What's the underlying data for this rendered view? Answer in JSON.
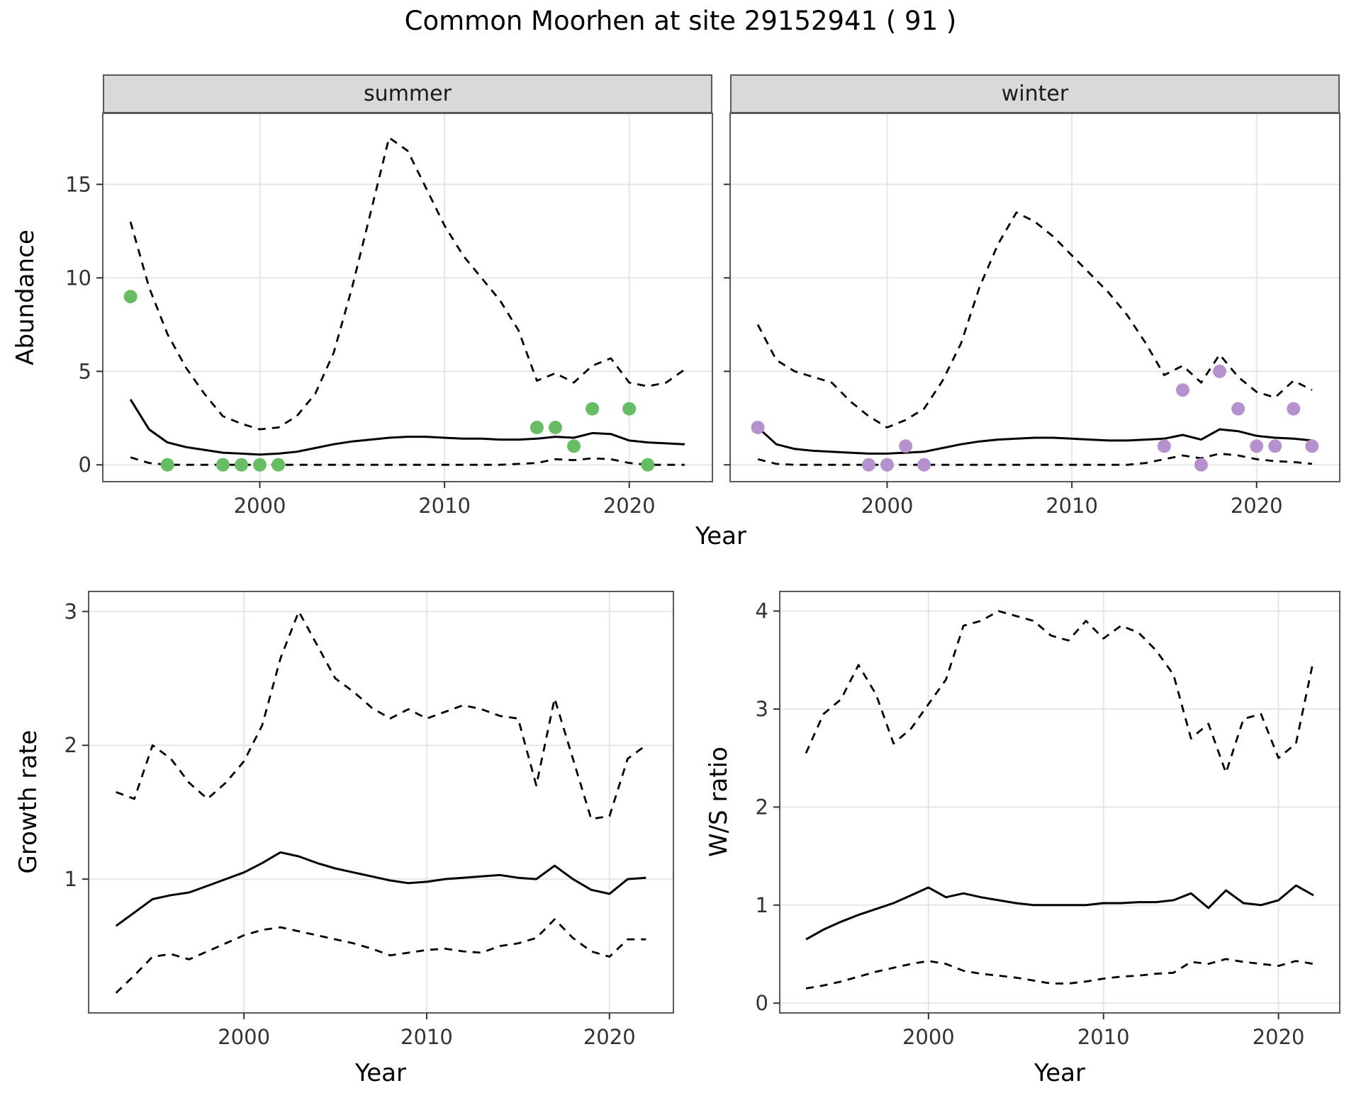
{
  "title": "Common Moorhen at site 29152941 ( 91 )",
  "colors": {
    "line": "#000000",
    "summer_points": "#66bd63",
    "winter_points": "#b592ce",
    "strip_bg": "#d9d9d9",
    "grid": "#e6e6e6",
    "panel_border": "#595959",
    "tick_text": "#333333"
  },
  "chart_data": [
    {
      "id": "abundance-summer",
      "type": "line",
      "facet": "summer",
      "xlabel": "Year",
      "ylabel": "Abundance",
      "xlim": [
        1991.5,
        2024.5
      ],
      "ylim": [
        -0.9,
        18.8
      ],
      "xticks": [
        2000,
        2010,
        2020
      ],
      "yticks": [
        0,
        5,
        10,
        15
      ],
      "grid": "major",
      "legend": "none",
      "series": [
        {
          "name": "median",
          "type": "line",
          "dash": false,
          "color": "#000000",
          "x": [
            1993,
            1994,
            1995,
            1996,
            1997,
            1998,
            1999,
            2000,
            2001,
            2002,
            2003,
            2004,
            2005,
            2006,
            2007,
            2008,
            2009,
            2010,
            2011,
            2012,
            2013,
            2014,
            2015,
            2016,
            2017,
            2018,
            2019,
            2020,
            2021,
            2022,
            2023
          ],
          "y": [
            3.5,
            1.9,
            1.2,
            0.95,
            0.8,
            0.65,
            0.6,
            0.55,
            0.6,
            0.7,
            0.9,
            1.1,
            1.25,
            1.35,
            1.45,
            1.5,
            1.5,
            1.45,
            1.4,
            1.4,
            1.35,
            1.35,
            1.4,
            1.5,
            1.45,
            1.7,
            1.65,
            1.3,
            1.2,
            1.15,
            1.1
          ]
        },
        {
          "name": "upper-ci",
          "type": "line",
          "dash": true,
          "color": "#000000",
          "x": [
            1993,
            1994,
            1995,
            1996,
            1997,
            1998,
            1999,
            2000,
            2001,
            2002,
            2003,
            2004,
            2005,
            2006,
            2007,
            2008,
            2009,
            2010,
            2011,
            2012,
            2013,
            2014,
            2015,
            2016,
            2017,
            2018,
            2019,
            2020,
            2021,
            2022,
            2023
          ],
          "y": [
            13,
            9.5,
            7,
            5.2,
            3.8,
            2.6,
            2.2,
            1.9,
            2,
            2.6,
            3.8,
            6,
            9.5,
            13.5,
            17.5,
            16.8,
            14.8,
            12.8,
            11.2,
            10,
            8.8,
            7.2,
            4.5,
            4.9,
            4.4,
            5.3,
            5.7,
            4.4,
            4.2,
            4.4,
            5.1
          ]
        },
        {
          "name": "lower-ci",
          "type": "line",
          "dash": true,
          "color": "#000000",
          "x": [
            1993,
            1994,
            1995,
            1996,
            1997,
            1998,
            1999,
            2000,
            2001,
            2002,
            2003,
            2004,
            2005,
            2006,
            2007,
            2008,
            2009,
            2010,
            2011,
            2012,
            2013,
            2014,
            2015,
            2016,
            2017,
            2018,
            2019,
            2020,
            2021,
            2022,
            2023
          ],
          "y": [
            0.4,
            0.1,
            0,
            0,
            0,
            0,
            0,
            0,
            0,
            0,
            0,
            0,
            0,
            0,
            0,
            0,
            0,
            0,
            0,
            0,
            0,
            0.05,
            0.1,
            0.3,
            0.25,
            0.35,
            0.3,
            0.1,
            0,
            0,
            0
          ]
        },
        {
          "name": "observed-counts",
          "type": "points",
          "color": "#66bd63",
          "points": [
            [
              1993,
              9
            ],
            [
              1995,
              0
            ],
            [
              1998,
              0
            ],
            [
              1999,
              0
            ],
            [
              2000,
              0
            ],
            [
              2001,
              0
            ],
            [
              2015,
              2
            ],
            [
              2016,
              2
            ],
            [
              2017,
              1
            ],
            [
              2018,
              3
            ],
            [
              2020,
              3
            ],
            [
              2021,
              0
            ]
          ]
        }
      ]
    },
    {
      "id": "abundance-winter",
      "type": "line",
      "facet": "winter",
      "xlabel": "Year",
      "ylabel": "Abundance",
      "xlim": [
        1991.5,
        2024.5
      ],
      "ylim": [
        -0.9,
        18.8
      ],
      "xticks": [
        2000,
        2010,
        2020
      ],
      "yticks": [
        0,
        5,
        10,
        15
      ],
      "grid": "major",
      "legend": "none",
      "series": [
        {
          "name": "median",
          "type": "line",
          "dash": false,
          "color": "#000000",
          "x": [
            1993,
            1994,
            1995,
            1996,
            1997,
            1998,
            1999,
            2000,
            2001,
            2002,
            2003,
            2004,
            2005,
            2006,
            2007,
            2008,
            2009,
            2010,
            2011,
            2012,
            2013,
            2014,
            2015,
            2016,
            2017,
            2018,
            2019,
            2020,
            2021,
            2022,
            2023
          ],
          "y": [
            2,
            1.1,
            0.85,
            0.75,
            0.7,
            0.65,
            0.6,
            0.6,
            0.65,
            0.7,
            0.9,
            1.1,
            1.25,
            1.35,
            1.4,
            1.45,
            1.45,
            1.4,
            1.35,
            1.3,
            1.3,
            1.35,
            1.4,
            1.6,
            1.35,
            1.9,
            1.8,
            1.55,
            1.45,
            1.4,
            1.3
          ]
        },
        {
          "name": "upper-ci",
          "type": "line",
          "dash": true,
          "color": "#000000",
          "x": [
            1993,
            1994,
            1995,
            1996,
            1997,
            1998,
            1999,
            2000,
            2001,
            2002,
            2003,
            2004,
            2005,
            2006,
            2007,
            2008,
            2009,
            2010,
            2011,
            2012,
            2013,
            2014,
            2015,
            2016,
            2017,
            2018,
            2019,
            2020,
            2021,
            2022,
            2023
          ],
          "y": [
            7.5,
            5.6,
            5,
            4.7,
            4.4,
            3.4,
            2.6,
            2,
            2.4,
            3,
            4.5,
            6.5,
            9.5,
            11.8,
            13.5,
            13,
            12.2,
            11.2,
            10.2,
            9.2,
            8,
            6.5,
            4.8,
            5.3,
            4.4,
            5.9,
            4.7,
            3.9,
            3.6,
            4.5,
            4
          ]
        },
        {
          "name": "lower-ci",
          "type": "line",
          "dash": true,
          "color": "#000000",
          "x": [
            1993,
            1994,
            1995,
            1996,
            1997,
            1998,
            1999,
            2000,
            2001,
            2002,
            2003,
            2004,
            2005,
            2006,
            2007,
            2008,
            2009,
            2010,
            2011,
            2012,
            2013,
            2014,
            2015,
            2016,
            2017,
            2018,
            2019,
            2020,
            2021,
            2022,
            2023
          ],
          "y": [
            0.3,
            0.05,
            0,
            0,
            0,
            0,
            0,
            0,
            0,
            0,
            0,
            0,
            0,
            0,
            0,
            0,
            0,
            0,
            0,
            0,
            0,
            0.1,
            0.3,
            0.5,
            0.35,
            0.6,
            0.5,
            0.3,
            0.2,
            0.15,
            0.05
          ]
        },
        {
          "name": "observed-counts",
          "type": "points",
          "color": "#b592ce",
          "points": [
            [
              1993,
              2
            ],
            [
              1999,
              0
            ],
            [
              2000,
              0
            ],
            [
              2001,
              1
            ],
            [
              2002,
              0
            ],
            [
              2015,
              1
            ],
            [
              2016,
              4
            ],
            [
              2017,
              0
            ],
            [
              2018,
              5
            ],
            [
              2019,
              3
            ],
            [
              2020,
              1
            ],
            [
              2021,
              1
            ],
            [
              2022,
              3
            ],
            [
              2023,
              1
            ]
          ]
        }
      ]
    },
    {
      "id": "growth-rate",
      "type": "line",
      "facet": null,
      "xlabel": "Year",
      "ylabel": "Growth rate",
      "xlim": [
        1991.5,
        2023.5
      ],
      "ylim": [
        0,
        3.15
      ],
      "xticks": [
        2000,
        2010,
        2020
      ],
      "yticks": [
        1,
        2,
        3
      ],
      "grid": "major",
      "legend": "none",
      "series": [
        {
          "name": "median",
          "type": "line",
          "dash": false,
          "color": "#000000",
          "x": [
            1993,
            1994,
            1995,
            1996,
            1997,
            1998,
            1999,
            2000,
            2001,
            2002,
            2003,
            2004,
            2005,
            2006,
            2007,
            2008,
            2009,
            2010,
            2011,
            2012,
            2013,
            2014,
            2015,
            2016,
            2017,
            2018,
            2019,
            2020,
            2021,
            2022
          ],
          "y": [
            0.65,
            0.75,
            0.85,
            0.88,
            0.9,
            0.95,
            1,
            1.05,
            1.12,
            1.2,
            1.17,
            1.12,
            1.08,
            1.05,
            1.02,
            0.99,
            0.97,
            0.98,
            1,
            1.01,
            1.02,
            1.03,
            1.01,
            1,
            1.1,
            1,
            0.92,
            0.89,
            1,
            1.01
          ]
        },
        {
          "name": "upper-ci",
          "type": "line",
          "dash": true,
          "color": "#000000",
          "x": [
            1993,
            1994,
            1995,
            1996,
            1997,
            1998,
            1999,
            2000,
            2001,
            2002,
            2003,
            2004,
            2005,
            2006,
            2007,
            2008,
            2009,
            2010,
            2011,
            2012,
            2013,
            2014,
            2015,
            2016,
            2017,
            2018,
            2019,
            2020,
            2021,
            2022
          ],
          "y": [
            1.65,
            1.6,
            2,
            1.9,
            1.72,
            1.6,
            1.72,
            1.88,
            2.15,
            2.65,
            3,
            2.75,
            2.5,
            2.4,
            2.28,
            2.2,
            2.27,
            2.2,
            2.25,
            2.3,
            2.27,
            2.22,
            2.2,
            1.7,
            2.35,
            1.9,
            1.45,
            1.47,
            1.9,
            2
          ]
        },
        {
          "name": "lower-ci",
          "type": "line",
          "dash": true,
          "color": "#000000",
          "x": [
            1993,
            1994,
            1995,
            1996,
            1997,
            1998,
            1999,
            2000,
            2001,
            2002,
            2003,
            2004,
            2005,
            2006,
            2007,
            2008,
            2009,
            2010,
            2011,
            2012,
            2013,
            2014,
            2015,
            2016,
            2017,
            2018,
            2019,
            2020,
            2021,
            2022
          ],
          "y": [
            0.15,
            0.28,
            0.42,
            0.44,
            0.4,
            0.46,
            0.52,
            0.58,
            0.62,
            0.64,
            0.61,
            0.58,
            0.55,
            0.52,
            0.48,
            0.43,
            0.45,
            0.47,
            0.48,
            0.46,
            0.45,
            0.5,
            0.52,
            0.56,
            0.7,
            0.56,
            0.46,
            0.42,
            0.55,
            0.55
          ]
        }
      ]
    },
    {
      "id": "ws-ratio",
      "type": "line",
      "facet": null,
      "xlabel": "Year",
      "ylabel": "W/S ratio",
      "xlim": [
        1991.5,
        2023.5
      ],
      "ylim": [
        -0.1,
        4.2
      ],
      "xticks": [
        2000,
        2010,
        2020
      ],
      "yticks": [
        0,
        1,
        2,
        3,
        4
      ],
      "grid": "major",
      "legend": "none",
      "series": [
        {
          "name": "median",
          "type": "line",
          "dash": false,
          "color": "#000000",
          "x": [
            1993,
            1994,
            1995,
            1996,
            1997,
            1998,
            1999,
            2000,
            2001,
            2002,
            2003,
            2004,
            2005,
            2006,
            2007,
            2008,
            2009,
            2010,
            2011,
            2012,
            2013,
            2014,
            2015,
            2016,
            2017,
            2018,
            2019,
            2020,
            2021,
            2022
          ],
          "y": [
            0.65,
            0.75,
            0.83,
            0.9,
            0.96,
            1.02,
            1.1,
            1.18,
            1.08,
            1.12,
            1.08,
            1.05,
            1.02,
            1,
            1,
            1,
            1,
            1.02,
            1.02,
            1.03,
            1.03,
            1.05,
            1.12,
            0.97,
            1.15,
            1.02,
            1,
            1.05,
            1.2,
            1.1
          ]
        },
        {
          "name": "upper-ci",
          "type": "line",
          "dash": true,
          "color": "#000000",
          "x": [
            1993,
            1994,
            1995,
            1996,
            1997,
            1998,
            1999,
            2000,
            2001,
            2002,
            2003,
            2004,
            2005,
            2006,
            2007,
            2008,
            2009,
            2010,
            2011,
            2012,
            2013,
            2014,
            2015,
            2016,
            2017,
            2018,
            2019,
            2020,
            2021,
            2022
          ],
          "y": [
            2.55,
            2.95,
            3.1,
            3.45,
            3.15,
            2.65,
            2.8,
            3.05,
            3.3,
            3.85,
            3.9,
            4,
            3.95,
            3.9,
            3.75,
            3.7,
            3.9,
            3.72,
            3.85,
            3.78,
            3.6,
            3.35,
            2.7,
            2.85,
            2.35,
            2.9,
            2.95,
            2.5,
            2.65,
            3.5
          ]
        },
        {
          "name": "lower-ci",
          "type": "line",
          "dash": true,
          "color": "#000000",
          "x": [
            1993,
            1994,
            1995,
            1996,
            1997,
            1998,
            1999,
            2000,
            2001,
            2002,
            2003,
            2004,
            2005,
            2006,
            2007,
            2008,
            2009,
            2010,
            2011,
            2012,
            2013,
            2014,
            2015,
            2016,
            2017,
            2018,
            2019,
            2020,
            2021,
            2022
          ],
          "y": [
            0.15,
            0.18,
            0.22,
            0.27,
            0.32,
            0.36,
            0.4,
            0.43,
            0.4,
            0.33,
            0.3,
            0.28,
            0.26,
            0.23,
            0.2,
            0.2,
            0.22,
            0.25,
            0.27,
            0.28,
            0.3,
            0.31,
            0.42,
            0.4,
            0.45,
            0.42,
            0.4,
            0.38,
            0.43,
            0.4
          ]
        }
      ]
    }
  ]
}
